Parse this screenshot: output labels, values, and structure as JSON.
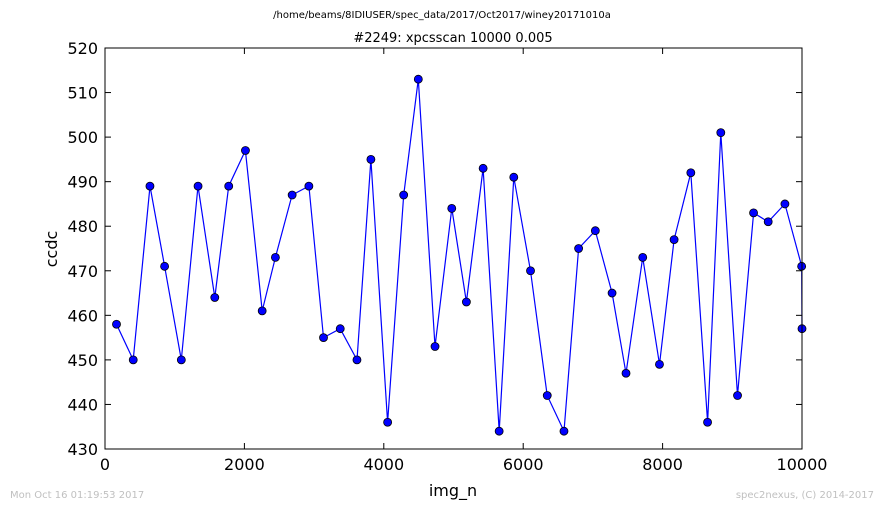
{
  "header": {
    "path": "/home/beams/8IDIUSER/spec_data/2017/Oct2017/winey20171010a"
  },
  "footer": {
    "left": "Mon Oct 16 01:19:53 2017",
    "right": "spec2nexus, (C) 2014-2017"
  },
  "colors": {
    "series": "#0000ff",
    "marker_edge": "#000000",
    "axes": "#000000"
  },
  "chart_data": {
    "type": "line",
    "title": "#2249: xpcsscan 10000 0.005",
    "xlabel": "img_n",
    "ylabel": "ccdc",
    "xlim": [
      0,
      10000
    ],
    "ylim": [
      430,
      520
    ],
    "x_ticks": [
      0,
      2000,
      4000,
      6000,
      8000,
      10000
    ],
    "x_tick_labels": [
      "0",
      "2000",
      "4000",
      "6000",
      "8000",
      "10000"
    ],
    "y_ticks": [
      430,
      440,
      450,
      460,
      470,
      480,
      490,
      500,
      510,
      520
    ],
    "y_tick_labels": [
      "430",
      "440",
      "450",
      "460",
      "470",
      "480",
      "490",
      "500",
      "510",
      "520"
    ],
    "grid": false,
    "marker": "circle",
    "series": [
      {
        "x": [
          165,
          405,
          645,
          855,
          1095,
          1335,
          1575,
          1775,
          2015,
          2255,
          2445,
          2685,
          2925,
          3135,
          3375,
          3615,
          3815,
          4055,
          4285,
          4495,
          4735,
          4975,
          5185,
          5425,
          5655,
          5865,
          6105,
          6345,
          6585,
          6795,
          7035,
          7275,
          7475,
          7715,
          7955,
          8165,
          8405,
          8645,
          8835,
          9075,
          9305,
          9515,
          9755,
          9995,
          10000
        ],
        "y": [
          458,
          450,
          489,
          471,
          450,
          489,
          464,
          489,
          497,
          461,
          473,
          487,
          489,
          455,
          457,
          450,
          495,
          436,
          487,
          513,
          453,
          484,
          463,
          493,
          434,
          491,
          470,
          442,
          434,
          475,
          479,
          465,
          447,
          473,
          449,
          477,
          492,
          436,
          501,
          442,
          483,
          481,
          485,
          471,
          457
        ]
      }
    ]
  }
}
